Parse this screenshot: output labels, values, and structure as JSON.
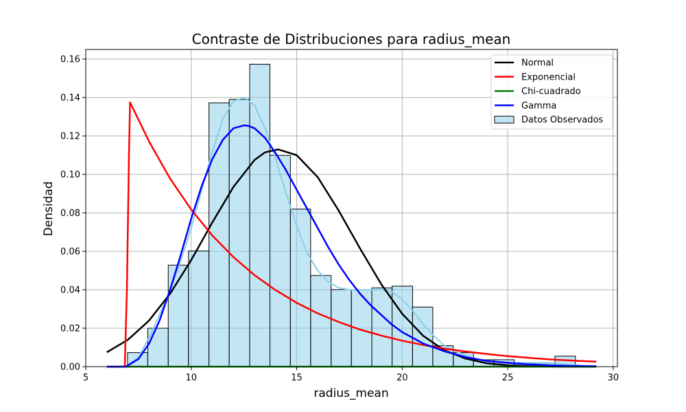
{
  "chart_data": {
    "type": "bar",
    "title": "Contraste de Distribuciones para radius_mean",
    "xlabel": "radius_mean",
    "ylabel": "Densidad",
    "xlim": [
      5.0,
      30.2
    ],
    "ylim": [
      0.0,
      0.165
    ],
    "xticks": [
      5,
      10,
      15,
      20,
      25,
      30
    ],
    "yticks": [
      0.0,
      0.02,
      0.04,
      0.06,
      0.08,
      0.1,
      0.12,
      0.14,
      0.16
    ],
    "xtick_labels": [
      "5",
      "10",
      "15",
      "20",
      "25",
      "30"
    ],
    "ytick_labels": [
      "0.00",
      "0.02",
      "0.04",
      "0.06",
      "0.08",
      "0.10",
      "0.12",
      "0.14",
      "0.16"
    ],
    "grid": true,
    "legend_position": "top-right",
    "histogram": {
      "name": "Datos Observados",
      "color": "#87ceeb",
      "bin_edges": [
        6.98,
        7.94,
        8.91,
        9.87,
        10.84,
        11.8,
        12.77,
        13.73,
        14.7,
        15.66,
        16.63,
        17.59,
        18.56,
        19.52,
        20.49,
        21.45,
        22.42,
        23.38,
        24.35,
        25.31,
        26.28,
        27.24,
        28.21
      ],
      "values": [
        0.0073,
        0.02,
        0.0528,
        0.0602,
        0.1372,
        0.139,
        0.1573,
        0.1099,
        0.082,
        0.0474,
        0.0401,
        0.0401,
        0.041,
        0.0419,
        0.031,
        0.0109,
        0.0073,
        0.0036,
        0.0036,
        0.0018,
        0.0018,
        0.0055
      ]
    },
    "kde": {
      "color": "#87ceeb",
      "x": [
        6.9,
        7.5,
        8.0,
        8.5,
        9.0,
        9.5,
        10.0,
        10.5,
        11.0,
        11.5,
        12.0,
        12.5,
        13.0,
        13.5,
        14.0,
        14.5,
        15.0,
        15.5,
        16.0,
        16.5,
        17.0,
        17.5,
        18.0,
        18.5,
        19.0,
        19.5,
        20.0,
        20.5,
        21.0,
        21.5,
        22.0,
        22.5,
        23.0,
        23.5,
        24.0,
        25.0,
        26.0,
        27.0,
        28.0,
        29.2
      ],
      "y": [
        0.0,
        0.005,
        0.015,
        0.027,
        0.04,
        0.055,
        0.072,
        0.092,
        0.112,
        0.129,
        0.138,
        0.14,
        0.136,
        0.124,
        0.108,
        0.09,
        0.073,
        0.059,
        0.05,
        0.044,
        0.041,
        0.04,
        0.04,
        0.04,
        0.04,
        0.039,
        0.035,
        0.029,
        0.022,
        0.016,
        0.011,
        0.008,
        0.006,
        0.004,
        0.003,
        0.002,
        0.002,
        0.002,
        0.001,
        0.0
      ]
    },
    "series": [
      {
        "name": "Normal",
        "color": "#000000",
        "x": [
          6.0,
          7.0,
          8.0,
          9.0,
          10.0,
          11.0,
          12.0,
          13.0,
          13.5,
          14.12,
          15.0,
          16.0,
          17.0,
          18.0,
          19.0,
          20.0,
          21.0,
          22.0,
          23.0,
          24.0,
          25.0,
          26.0,
          27.0,
          28.0,
          29.2
        ],
        "y": [
          0.0075,
          0.014,
          0.024,
          0.038,
          0.0555,
          0.075,
          0.0935,
          0.1075,
          0.1115,
          0.113,
          0.11,
          0.0985,
          0.081,
          0.0615,
          0.043,
          0.0275,
          0.016,
          0.0085,
          0.0042,
          0.0018,
          0.0007,
          0.0003,
          0.0001,
          0.0,
          0.0
        ]
      },
      {
        "name": "Exponencial",
        "color": "#ff0000",
        "x": [
          6.0,
          6.85,
          6.95,
          7.05,
          7.1,
          8.0,
          9.0,
          10.0,
          11.0,
          12.0,
          13.0,
          14.0,
          15.0,
          16.0,
          17.0,
          18.0,
          19.0,
          20.0,
          21.0,
          22.0,
          23.0,
          24.0,
          25.0,
          26.0,
          27.0,
          28.0,
          29.2
        ],
        "y": [
          0.0,
          0.0,
          0.04,
          0.11,
          0.1375,
          0.1171,
          0.0978,
          0.0817,
          0.0682,
          0.057,
          0.0476,
          0.0398,
          0.0332,
          0.0277,
          0.0232,
          0.0193,
          0.0162,
          0.0135,
          0.0113,
          0.0094,
          0.0079,
          0.0066,
          0.0055,
          0.0046,
          0.0038,
          0.0032,
          0.0026
        ]
      },
      {
        "name": "Chi-cuadrado",
        "color": "#008000",
        "x": [
          6.0,
          29.2
        ],
        "y": [
          0.0,
          0.0
        ]
      },
      {
        "name": "Gamma",
        "color": "#0000ff",
        "x": [
          6.0,
          6.9,
          7.5,
          8.0,
          8.5,
          9.0,
          9.5,
          10.0,
          10.5,
          11.0,
          11.5,
          12.0,
          12.5,
          12.7,
          13.0,
          13.5,
          14.0,
          14.5,
          15.0,
          15.5,
          16.0,
          16.5,
          17.0,
          17.5,
          18.0,
          18.5,
          19.0,
          19.5,
          20.0,
          20.5,
          21.0,
          22.0,
          23.0,
          24.0,
          25.0,
          26.0,
          27.0,
          28.0,
          29.2
        ],
        "y": [
          0.0,
          0.0,
          0.004,
          0.012,
          0.024,
          0.04,
          0.058,
          0.077,
          0.094,
          0.108,
          0.118,
          0.124,
          0.1255,
          0.1253,
          0.124,
          0.119,
          0.111,
          0.102,
          0.092,
          0.082,
          0.072,
          0.062,
          0.053,
          0.045,
          0.038,
          0.032,
          0.027,
          0.022,
          0.018,
          0.015,
          0.012,
          0.008,
          0.005,
          0.003,
          0.002,
          0.0012,
          0.0007,
          0.0004,
          0.0002
        ]
      }
    ],
    "legend": [
      {
        "label": "Normal",
        "kind": "line",
        "color": "#000000"
      },
      {
        "label": "Exponencial",
        "kind": "line",
        "color": "#ff0000"
      },
      {
        "label": "Chi-cuadrado",
        "kind": "line",
        "color": "#008000"
      },
      {
        "label": "Gamma",
        "kind": "line",
        "color": "#0000ff"
      },
      {
        "label": "Datos Observados",
        "kind": "patch",
        "color": "#87ceeb"
      }
    ]
  }
}
